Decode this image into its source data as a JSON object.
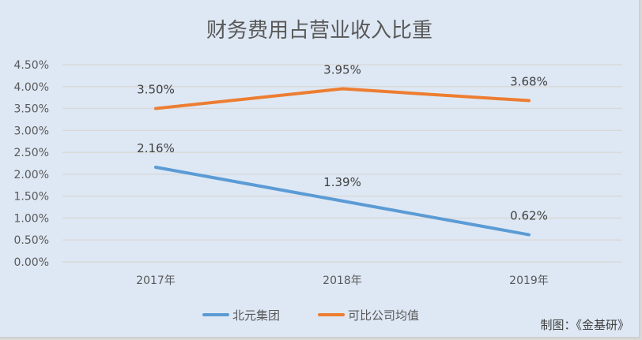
{
  "chart_data": {
    "type": "line",
    "title": "财务费用占营业收入比重",
    "categories": [
      "2017年",
      "2018年",
      "2019年"
    ],
    "series": [
      {
        "name": "北元集团",
        "values": [
          2.16,
          1.39,
          0.62
        ],
        "labels": [
          "2.16%",
          "1.39%",
          "0.62%"
        ],
        "color": "#5b9bd5"
      },
      {
        "name": "可比公司均值",
        "values": [
          3.5,
          3.95,
          3.68
        ],
        "labels": [
          "3.50%",
          "3.95%",
          "3.68%"
        ],
        "color": "#ed7d31"
      }
    ],
    "ylim": [
      0,
      4.5
    ],
    "yticks": [
      "0.00%",
      "0.50%",
      "1.00%",
      "1.50%",
      "2.00%",
      "2.50%",
      "3.00%",
      "3.50%",
      "4.00%",
      "4.50%"
    ],
    "ystep": 0.5,
    "grid": true,
    "legend": "bottom",
    "xlabel": "",
    "ylabel": ""
  },
  "source": "制图：《金基研》"
}
